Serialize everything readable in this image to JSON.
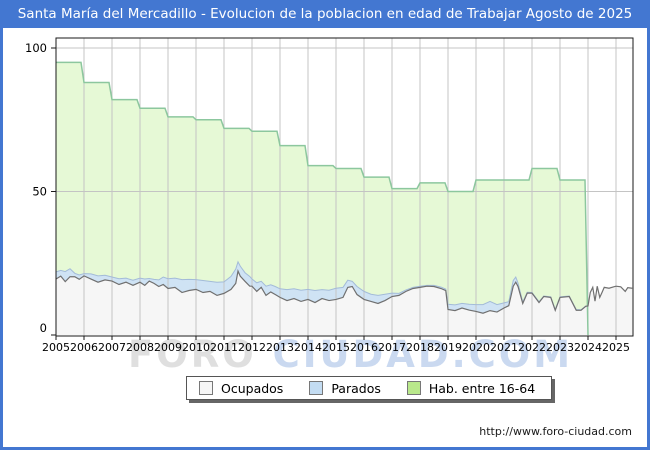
{
  "header": {
    "title": "Santa María del Mercadillo - Evolucion de la poblacion en edad de Trabajar Agosto de 2025",
    "bg_color": "#4377d1",
    "text_color": "#ffffff"
  },
  "watermark": {
    "part1": "FORO ",
    "part2": "CIUDAD.COM"
  },
  "footer": {
    "url": "http://www.foro-ciudad.com"
  },
  "legend": {
    "position": "bottom-center",
    "items": [
      {
        "label": "Ocupados",
        "fill": "#f6f6f6",
        "border": "#777777"
      },
      {
        "label": "Parados",
        "fill": "#c3dcf2",
        "border": "#777777"
      },
      {
        "label": "Hab. entre 16-64",
        "fill": "#b9e88b",
        "border": "#777777"
      }
    ]
  },
  "chart_data": {
    "type": "area",
    "title": "Santa María del Mercadillo - Evolucion de la poblacion en edad de Trabajar Agosto de 2025",
    "grid": true,
    "x_ticks": [
      2005,
      2006,
      2007,
      2008,
      2009,
      2010,
      2011,
      2012,
      2013,
      2014,
      2015,
      2016,
      2017,
      2018,
      2019,
      2020,
      2021,
      2022,
      2023,
      2024,
      2025
    ],
    "y_ticks": [
      0,
      50,
      100
    ],
    "y_range": [
      0,
      104
    ],
    "x_range": [
      2005,
      2025.6
    ],
    "hab_16_64": {
      "name": "Hab. entre 16-64",
      "style": "annual-step",
      "fill": "#e6f9d6",
      "line": "#8cc79e",
      "years": [
        2005,
        2006,
        2007,
        2008,
        2009,
        2010,
        2011,
        2012,
        2013,
        2014,
        2015,
        2016,
        2017,
        2018,
        2019,
        2020,
        2021,
        2022,
        2023
      ],
      "values": [
        95,
        88,
        82,
        79,
        76,
        75,
        72,
        71,
        66,
        59,
        58,
        55,
        51,
        53,
        50,
        54,
        54,
        58,
        54
      ],
      "ends_at": 2024.0
    },
    "employment": {
      "note": "monthly-resolution estimates; parados is stacked on top of ocupados",
      "ocupados_fill": "#f6f6f6",
      "ocupados_line": "#707070",
      "parados_fill": "#cfe3f4",
      "parados_line": "#a3bbd8",
      "parados_ends_at": 2024.0,
      "x": [
        2005.0,
        2005.17,
        2005.33,
        2005.5,
        2005.67,
        2005.83,
        2006.0,
        2006.25,
        2006.5,
        2006.75,
        2007.0,
        2007.25,
        2007.5,
        2007.75,
        2008.0,
        2008.17,
        2008.33,
        2008.5,
        2008.67,
        2008.83,
        2009.0,
        2009.25,
        2009.5,
        2009.75,
        2010.0,
        2010.25,
        2010.5,
        2010.75,
        2011.0,
        2011.25,
        2011.42,
        2011.5,
        2011.58,
        2011.75,
        2011.92,
        2012.0,
        2012.17,
        2012.33,
        2012.5,
        2012.67,
        2012.83,
        2013.0,
        2013.25,
        2013.5,
        2013.75,
        2014.0,
        2014.25,
        2014.5,
        2014.75,
        2015.0,
        2015.25,
        2015.42,
        2015.58,
        2015.75,
        2016.0,
        2016.25,
        2016.5,
        2016.75,
        2017.0,
        2017.25,
        2017.5,
        2017.75,
        2018.0,
        2018.25,
        2018.5,
        2018.75,
        2018.92,
        2019.0,
        2019.25,
        2019.5,
        2019.75,
        2020.0,
        2020.25,
        2020.5,
        2020.75,
        2021.0,
        2021.17,
        2021.33,
        2021.42,
        2021.5,
        2021.67,
        2021.83,
        2022.0,
        2022.25,
        2022.42,
        2022.67,
        2022.83,
        2023.0,
        2023.33,
        2023.58,
        2023.75,
        2023.92,
        2024.0,
        2024.08,
        2024.17,
        2024.25,
        2024.33,
        2024.42,
        2024.5,
        2024.58,
        2024.75,
        2024.92,
        2025.0,
        2025.17,
        2025.33,
        2025.42,
        2025.58
      ],
      "ocupados": [
        19.5,
        20.5,
        18.6,
        20.3,
        20.3,
        19.4,
        20.6,
        19.5,
        18.4,
        19.2,
        18.8,
        17.6,
        18.4,
        17.3,
        18.4,
        17.3,
        18.8,
        18.0,
        16.9,
        17.6,
        16.2,
        16.6,
        14.8,
        15.5,
        15.9,
        14.8,
        15.2,
        13.8,
        14.5,
        15.9,
        18.0,
        22.3,
        20.5,
        18.7,
        17.0,
        17.0,
        15.2,
        16.6,
        13.8,
        15.0,
        14.1,
        13.1,
        12.0,
        12.7,
        11.7,
        12.4,
        11.3,
        12.7,
        12.0,
        12.4,
        13.1,
        16.6,
        16.9,
        14.1,
        12.4,
        11.7,
        11.0,
        12.0,
        13.4,
        13.8,
        15.2,
        16.2,
        16.6,
        17.0,
        16.9,
        16.2,
        15.5,
        8.9,
        8.5,
        9.4,
        8.7,
        8.2,
        7.6,
        8.5,
        8.0,
        9.4,
        10.2,
        17.0,
        18.4,
        16.9,
        11.0,
        14.6,
        14.6,
        11.3,
        13.4,
        13.1,
        8.6,
        13.1,
        13.4,
        8.6,
        8.6,
        10.0,
        10.1,
        14.8,
        16.6,
        11.8,
        17.0,
        13.1,
        14.8,
        16.6,
        16.3,
        16.8,
        17.0,
        16.8,
        15.2,
        16.5,
        16.3
      ],
      "parados": [
        2.5,
        2.0,
        3.5,
        2.8,
        1.2,
        1.5,
        0.8,
        1.8,
        2.2,
        1.6,
        1.4,
        2.0,
        1.4,
        1.8,
        1.4,
        2.2,
        0.9,
        1.4,
        2.3,
        2.6,
        3.4,
        3.2,
        4.5,
        3.9,
        3.4,
        4.2,
        3.5,
        4.6,
        4.0,
        4.5,
        5.0,
        3.2,
        3.5,
        3.0,
        3.4,
        2.5,
        3.0,
        2.1,
        3.2,
        2.5,
        2.8,
        3.0,
        3.8,
        3.4,
        3.9,
        3.5,
        4.2,
        3.1,
        3.6,
        3.9,
        3.5,
        2.5,
        1.8,
        2.8,
        2.8,
        2.5,
        2.8,
        2.2,
        1.2,
        0.7,
        0.5,
        0.4,
        0.4,
        0.3,
        0.4,
        0.5,
        0.5,
        1.8,
        2.0,
        1.6,
        2.0,
        2.4,
        3.0,
        3.2,
        2.6,
        1.8,
        1.4,
        2.0,
        1.8,
        1.2,
        0.5,
        0.3,
        0.2,
        0.3,
        0.2,
        0.2,
        0.3,
        0.2,
        0.2,
        0.3,
        0.2,
        0.1,
        0,
        0,
        0,
        0,
        0,
        0,
        0,
        0,
        0,
        0,
        0,
        0,
        0,
        0,
        0
      ]
    }
  }
}
